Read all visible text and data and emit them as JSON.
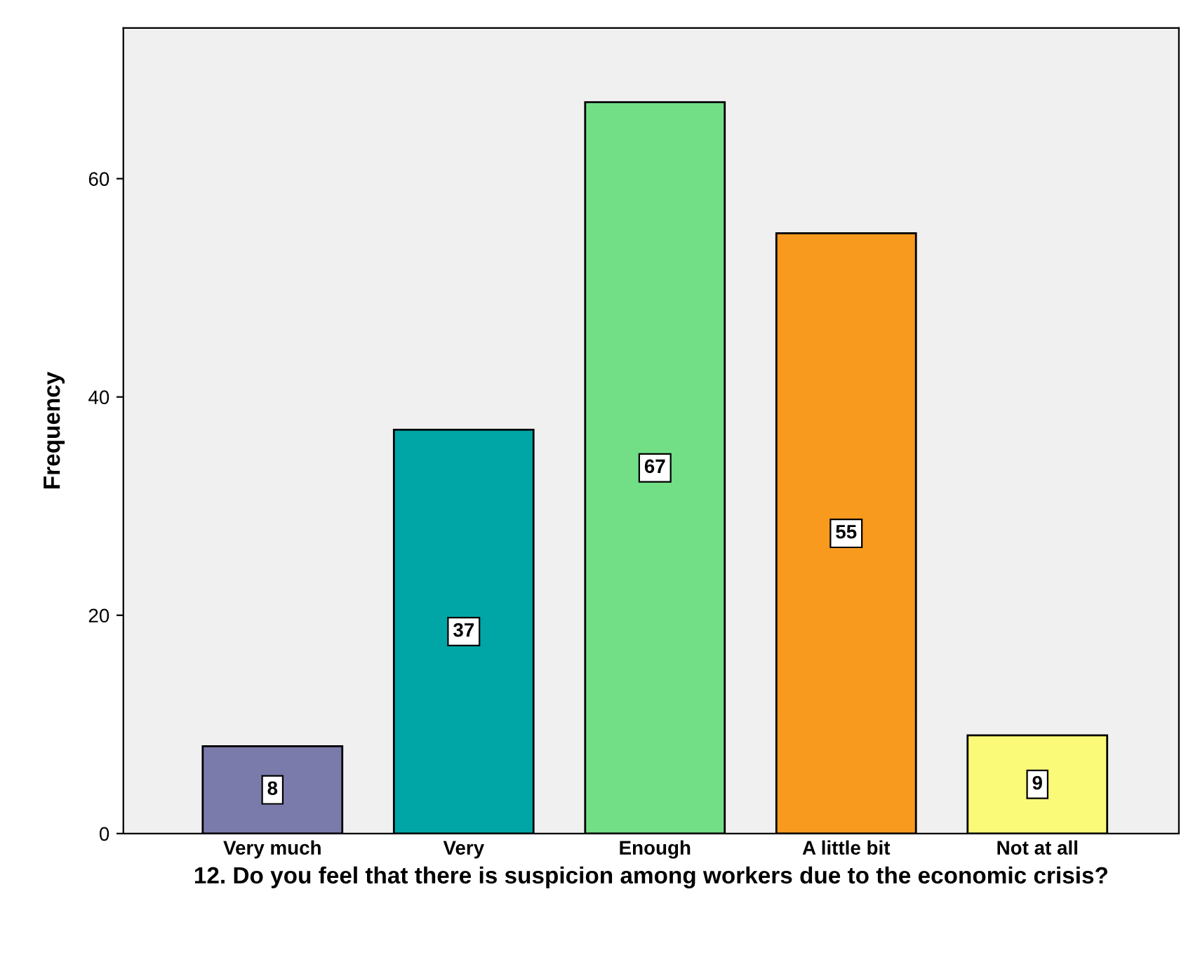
{
  "chart_data": {
    "type": "bar",
    "categories": [
      "Very much",
      "Very",
      "Enough",
      "A little bit",
      "Not at all"
    ],
    "values": [
      8,
      37,
      67,
      55,
      9
    ],
    "colors": [
      "#7b7bab",
      "#00a6a6",
      "#72de86",
      "#f79a1e",
      "#fafa78"
    ],
    "xlabel": "12. Do you feel that there is suspicion among workers due to the economic crisis?",
    "ylabel": "Frequency",
    "ylim": [
      0,
      73.8
    ],
    "yticks": [
      0,
      20,
      40,
      60
    ],
    "data_labels": true,
    "grid": false,
    "legend": false
  }
}
